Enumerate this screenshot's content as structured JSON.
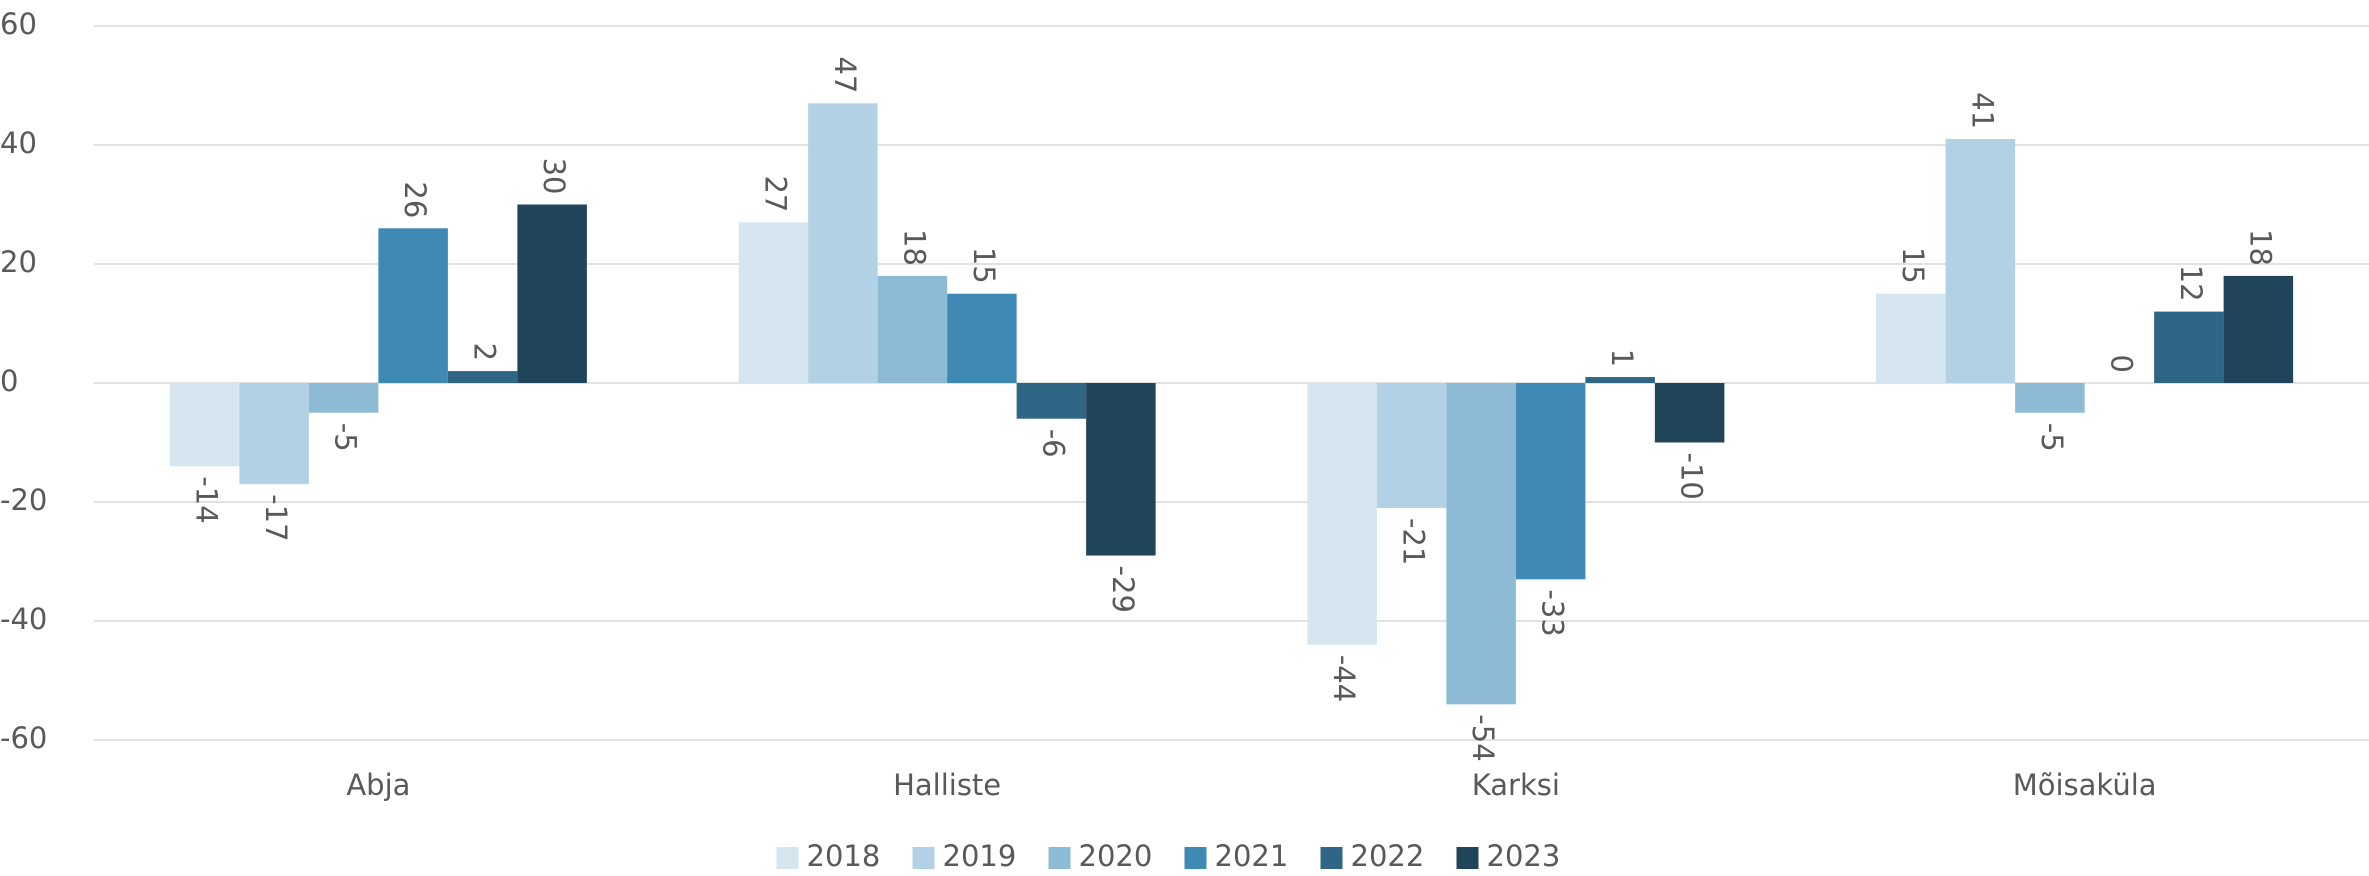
{
  "chart_data": {
    "type": "bar",
    "categories": [
      "Abja",
      "Halliste",
      "Karksi",
      "Mõisaküla"
    ],
    "series": [
      {
        "name": "2018",
        "color": "#d6e6f0",
        "values": [
          -14,
          27,
          -44,
          15
        ]
      },
      {
        "name": "2019",
        "color": "#b3d1e4",
        "values": [
          -17,
          47,
          -21,
          41
        ]
      },
      {
        "name": "2020",
        "color": "#8dbbd5",
        "values": [
          -5,
          18,
          -54,
          -5
        ]
      },
      {
        "name": "2021",
        "color": "#3f89b5",
        "values": [
          26,
          15,
          -33,
          0
        ]
      },
      {
        "name": "2022",
        "color": "#2f6585",
        "values": [
          2,
          -6,
          1,
          12
        ]
      },
      {
        "name": "2023",
        "color": "#204459",
        "values": [
          30,
          -29,
          -10,
          18
        ]
      }
    ],
    "ylim": [
      -60,
      60
    ],
    "yticks": [
      -60,
      -40,
      -20,
      0,
      20,
      40,
      60
    ],
    "grid": true,
    "legend": "bottom"
  }
}
